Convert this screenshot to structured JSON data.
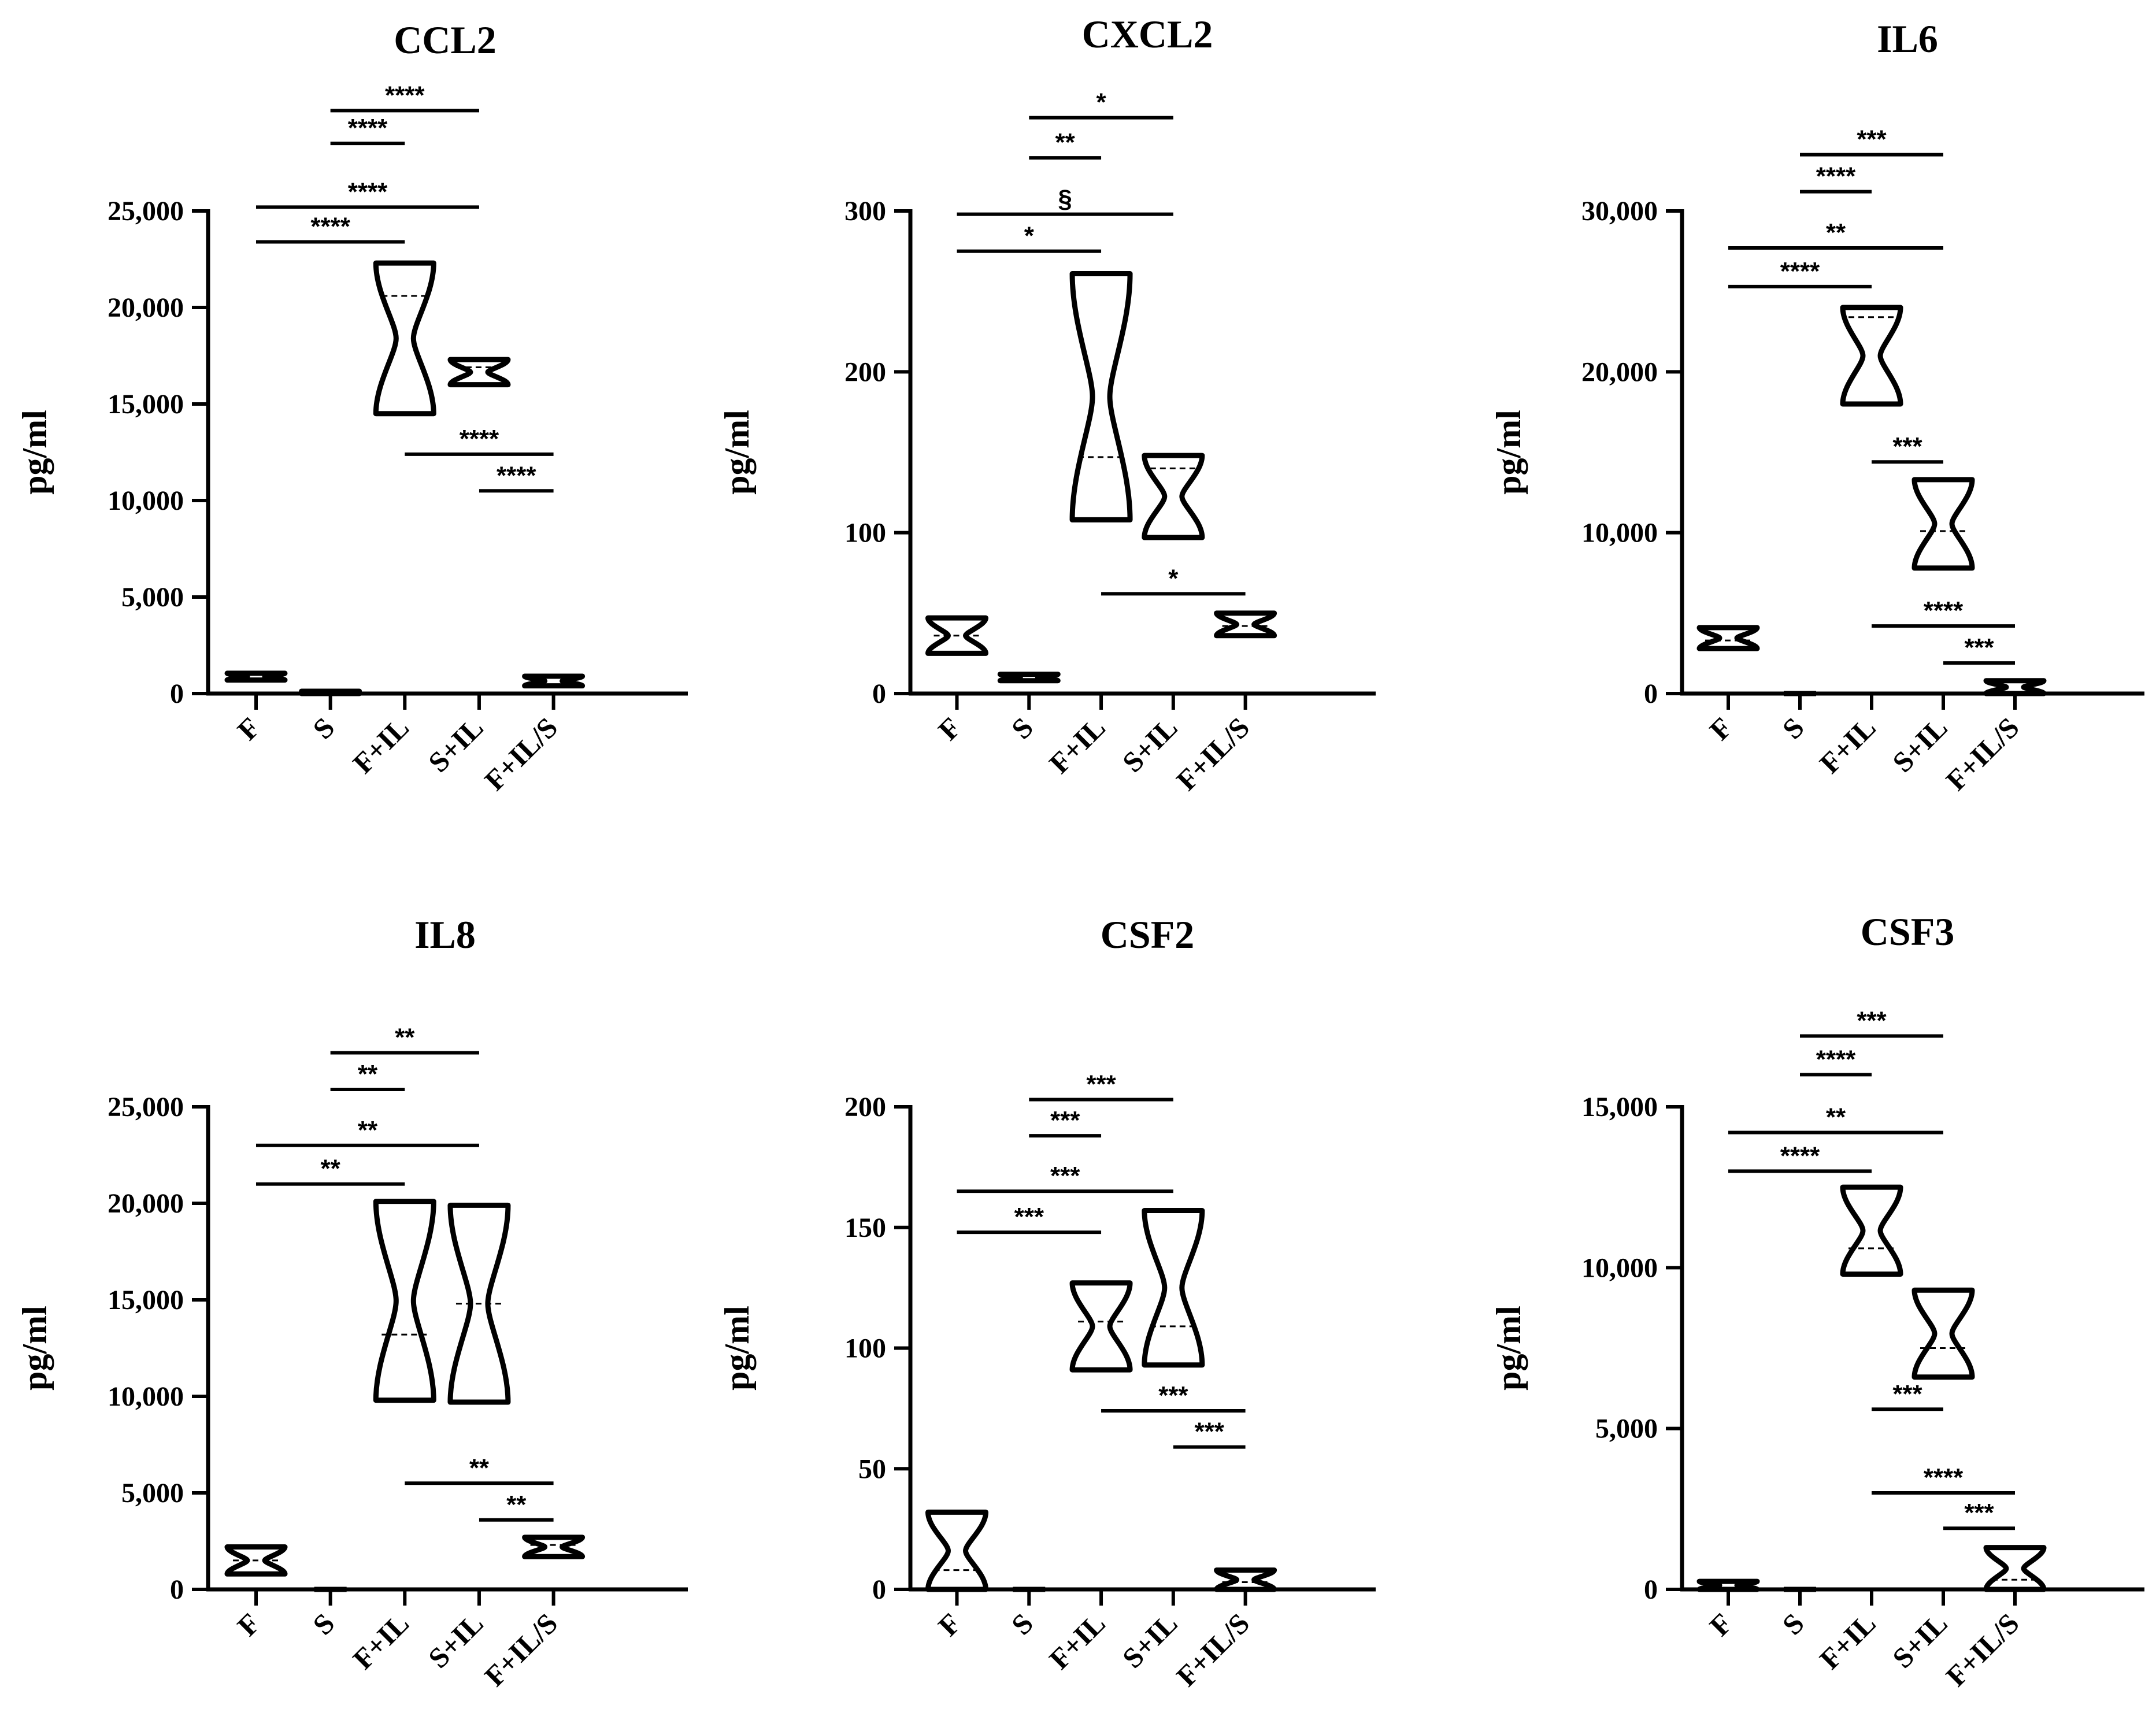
{
  "colors": {
    "ink": "#000000",
    "background": "#ffffff"
  },
  "chart_data": [
    {
      "type": "violin",
      "title": "CCL2",
      "ylabel": "pg/ml",
      "categories": [
        "F",
        "S",
        "F+IL",
        "S+IL",
        "F+IL/S"
      ],
      "ylim": [
        0,
        25000
      ],
      "yticks": [
        0,
        5000,
        10000,
        15000,
        20000,
        25000
      ],
      "ytick_labels": [
        "0",
        "5,000",
        "10,000",
        "15,000",
        "20,000",
        "25,000"
      ],
      "violins": [
        {
          "category": "F",
          "min": 700,
          "max": 1050,
          "median": 880
        },
        {
          "category": "S",
          "min": 0,
          "max": 120,
          "median": 60
        },
        {
          "category": "F+IL",
          "min": 14500,
          "max": 22300,
          "median": 20600
        },
        {
          "category": "S+IL",
          "min": 16000,
          "max": 17300,
          "median": 16900
        },
        {
          "category": "F+IL/S",
          "min": 400,
          "max": 900,
          "median": 650
        }
      ],
      "comparisons": [
        {
          "from": "F",
          "to": "F+IL",
          "label": "****",
          "y": 23400
        },
        {
          "from": "F",
          "to": "S+IL",
          "label": "****",
          "y": 25200
        },
        {
          "from": "S",
          "to": "F+IL",
          "label": "****",
          "y": 28500
        },
        {
          "from": "S",
          "to": "S+IL",
          "label": "****",
          "y": 30200
        },
        {
          "from": "F+IL",
          "to": "F+IL/S",
          "label": "****",
          "y": 12400
        },
        {
          "from": "S+IL",
          "to": "F+IL/S",
          "label": "****",
          "y": 10500
        }
      ]
    },
    {
      "type": "violin",
      "title": "CXCL2",
      "ylabel": "pg/ml",
      "categories": [
        "F",
        "S",
        "F+IL",
        "S+IL",
        "F+IL/S"
      ],
      "ylim": [
        0,
        300
      ],
      "yticks": [
        0,
        100,
        200,
        300
      ],
      "ytick_labels": [
        "0",
        "100",
        "200",
        "300"
      ],
      "violins": [
        {
          "category": "F",
          "min": 25,
          "max": 47,
          "median": 36
        },
        {
          "category": "S",
          "min": 8,
          "max": 12,
          "median": 10
        },
        {
          "category": "F+IL",
          "min": 108,
          "max": 261,
          "median": 147
        },
        {
          "category": "S+IL",
          "min": 97,
          "max": 148,
          "median": 140
        },
        {
          "category": "F+IL/S",
          "min": 36,
          "max": 50,
          "median": 42
        }
      ],
      "comparisons": [
        {
          "from": "F",
          "to": "F+IL",
          "label": "*",
          "y": 275
        },
        {
          "from": "F",
          "to": "S+IL",
          "label": "§",
          "y": 298
        },
        {
          "from": "S",
          "to": "F+IL",
          "label": "**",
          "y": 333
        },
        {
          "from": "S",
          "to": "S+IL",
          "label": "*",
          "y": 358
        },
        {
          "from": "F+IL",
          "to": "F+IL/S",
          "label": "*",
          "y": 62
        }
      ]
    },
    {
      "type": "violin",
      "title": "IL6",
      "ylabel": "pg/ml",
      "categories": [
        "F",
        "S",
        "F+IL",
        "S+IL",
        "F+IL/S"
      ],
      "ylim": [
        0,
        30000
      ],
      "yticks": [
        0,
        10000,
        20000,
        30000
      ],
      "ytick_labels": [
        "0",
        "10,000",
        "20,000",
        "30,000"
      ],
      "violins": [
        {
          "category": "F",
          "min": 2800,
          "max": 4100,
          "median": 3300
        },
        {
          "category": "S",
          "min": 0,
          "max": 50,
          "median": 20
        },
        {
          "category": "F+IL",
          "min": 18000,
          "max": 24000,
          "median": 23400
        },
        {
          "category": "S+IL",
          "min": 7800,
          "max": 13300,
          "median": 10100
        },
        {
          "category": "F+IL/S",
          "min": 0,
          "max": 800,
          "median": 300
        }
      ],
      "comparisons": [
        {
          "from": "F",
          "to": "F+IL",
          "label": "****",
          "y": 25300
        },
        {
          "from": "F",
          "to": "S+IL",
          "label": "**",
          "y": 27700
        },
        {
          "from": "S",
          "to": "F+IL",
          "label": "****",
          "y": 31200
        },
        {
          "from": "S",
          "to": "S+IL",
          "label": "***",
          "y": 33500
        },
        {
          "from": "F+IL",
          "to": "S+IL",
          "label": "***",
          "y": 14400
        },
        {
          "from": "F+IL",
          "to": "F+IL/S",
          "label": "****",
          "y": 4200
        },
        {
          "from": "S+IL",
          "to": "F+IL/S",
          "label": "***",
          "y": 1900
        }
      ]
    },
    {
      "type": "violin",
      "title": "IL8",
      "ylabel": "pg/ml",
      "categories": [
        "F",
        "S",
        "F+IL",
        "S+IL",
        "F+IL/S"
      ],
      "ylim": [
        0,
        25000
      ],
      "yticks": [
        0,
        5000,
        10000,
        15000,
        20000,
        25000
      ],
      "ytick_labels": [
        "0",
        "5,000",
        "10,000",
        "15,000",
        "20,000",
        "25,000"
      ],
      "violins": [
        {
          "category": "F",
          "min": 800,
          "max": 2200,
          "median": 1500
        },
        {
          "category": "S",
          "min": 0,
          "max": 60,
          "median": 30
        },
        {
          "category": "F+IL",
          "min": 9800,
          "max": 20100,
          "median": 13200
        },
        {
          "category": "S+IL",
          "min": 9700,
          "max": 19900,
          "median": 14800
        },
        {
          "category": "F+IL/S",
          "min": 1700,
          "max": 2700,
          "median": 2300
        }
      ],
      "comparisons": [
        {
          "from": "F",
          "to": "F+IL",
          "label": "**",
          "y": 21000
        },
        {
          "from": "F",
          "to": "S+IL",
          "label": "**",
          "y": 23000
        },
        {
          "from": "S",
          "to": "F+IL",
          "label": "**",
          "y": 25900
        },
        {
          "from": "S",
          "to": "S+IL",
          "label": "**",
          "y": 27800
        },
        {
          "from": "F+IL",
          "to": "F+IL/S",
          "label": "**",
          "y": 5500
        },
        {
          "from": "S+IL",
          "to": "F+IL/S",
          "label": "**",
          "y": 3600
        }
      ]
    },
    {
      "type": "violin",
      "title": "CSF2",
      "ylabel": "pg/ml",
      "categories": [
        "F",
        "S",
        "F+IL",
        "S+IL",
        "F+IL/S"
      ],
      "ylim": [
        0,
        200
      ],
      "yticks": [
        0,
        50,
        100,
        150,
        200
      ],
      "ytick_labels": [
        "0",
        "50",
        "100",
        "150",
        "200"
      ],
      "violins": [
        {
          "category": "F",
          "min": 0,
          "max": 32,
          "median": 8
        },
        {
          "category": "S",
          "min": 0,
          "max": 0.5,
          "median": 0.2
        },
        {
          "category": "F+IL",
          "min": 91,
          "max": 127,
          "median": 111
        },
        {
          "category": "S+IL",
          "min": 93,
          "max": 157,
          "median": 109
        },
        {
          "category": "F+IL/S",
          "min": 0,
          "max": 8,
          "median": 3
        }
      ],
      "comparisons": [
        {
          "from": "F",
          "to": "F+IL",
          "label": "***",
          "y": 148
        },
        {
          "from": "F",
          "to": "S+IL",
          "label": "***",
          "y": 165
        },
        {
          "from": "S",
          "to": "F+IL",
          "label": "***",
          "y": 188
        },
        {
          "from": "S",
          "to": "S+IL",
          "label": "***",
          "y": 203
        },
        {
          "from": "F+IL",
          "to": "F+IL/S",
          "label": "***",
          "y": 74
        },
        {
          "from": "S+IL",
          "to": "F+IL/S",
          "label": "***",
          "y": 59
        }
      ]
    },
    {
      "type": "violin",
      "title": "CSF3",
      "ylabel": "pg/ml",
      "categories": [
        "F",
        "S",
        "F+IL",
        "S+IL",
        "F+IL/S"
      ],
      "ylim": [
        0,
        15000
      ],
      "yticks": [
        0,
        5000,
        10000,
        15000
      ],
      "ytick_labels": [
        "0",
        "5,000",
        "10,000",
        "15,000"
      ],
      "violins": [
        {
          "category": "F",
          "min": 0,
          "max": 250,
          "median": 80
        },
        {
          "category": "S",
          "min": 0,
          "max": 20,
          "median": 10
        },
        {
          "category": "F+IL",
          "min": 9800,
          "max": 12500,
          "median": 10600
        },
        {
          "category": "S+IL",
          "min": 6600,
          "max": 9300,
          "median": 7500
        },
        {
          "category": "F+IL/S",
          "min": 0,
          "max": 1300,
          "median": 300
        }
      ],
      "comparisons": [
        {
          "from": "F",
          "to": "F+IL",
          "label": "****",
          "y": 13000
        },
        {
          "from": "F",
          "to": "S+IL",
          "label": "**",
          "y": 14200
        },
        {
          "from": "S",
          "to": "F+IL",
          "label": "****",
          "y": 16000
        },
        {
          "from": "S",
          "to": "S+IL",
          "label": "***",
          "y": 17200
        },
        {
          "from": "F+IL",
          "to": "S+IL",
          "label": "***",
          "y": 5600
        },
        {
          "from": "F+IL",
          "to": "F+IL/S",
          "label": "****",
          "y": 3000
        },
        {
          "from": "S+IL",
          "to": "F+IL/S",
          "label": "***",
          "y": 1900
        }
      ]
    }
  ]
}
